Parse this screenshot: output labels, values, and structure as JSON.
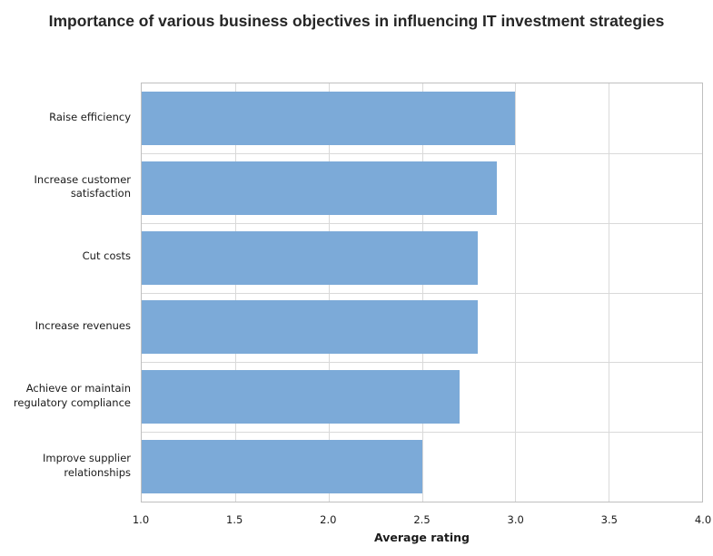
{
  "chart_data": {
    "type": "bar",
    "orientation": "horizontal",
    "title": "Importance of various business objectives in influencing IT investment strategies",
    "categories": [
      "Raise efficiency",
      "Increase customer satisfaction",
      "Cut costs",
      "Increase revenues",
      "Achieve or maintain regulatory compliance",
      "Improve supplier relationships"
    ],
    "values": [
      3.0,
      2.9,
      2.8,
      2.8,
      2.7,
      2.5
    ],
    "xlabel": "Average rating",
    "xlim": [
      1.0,
      4.0
    ],
    "xticks": [
      1.0,
      1.5,
      2.0,
      2.5,
      3.0,
      3.5,
      4.0
    ],
    "grid": true,
    "legend": false,
    "colors": {
      "bar": "#7caad8",
      "grid": "#d9d9d9",
      "plot_border": "#bfbfbf",
      "text": "#1a1a1a",
      "title_text": "#262626",
      "background": "#ffffff"
    }
  }
}
